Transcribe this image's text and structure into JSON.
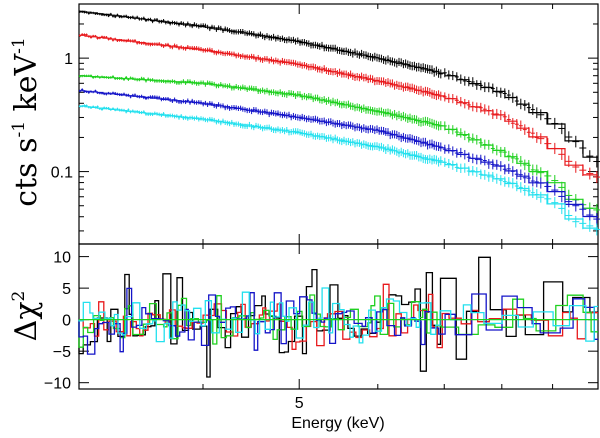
{
  "chart_data": [
    {
      "type": "line",
      "panel": "spectrum",
      "xscale": "log",
      "yscale": "log",
      "xlim": [
        3.0,
        10.0
      ],
      "ylim": [
        0.023,
        3.0
      ],
      "ylabel": "cts s⁻¹ keV⁻¹",
      "ylabel_main": "cts s",
      "ylabel_exp1": "-1",
      "ylabel_mid": " keV",
      "ylabel_exp2": "-1",
      "yticks": [
        0.1,
        1
      ],
      "ytick_labels": [
        "0.1",
        "1"
      ],
      "series": [
        {
          "name": "black",
          "color": "#000000",
          "x": [
            3.0,
            4.0,
            5.0,
            6.0,
            7.0,
            8.0,
            9.0,
            9.5,
            10.0
          ],
          "y": [
            2.6,
            1.9,
            1.4,
            1.0,
            0.73,
            0.5,
            0.28,
            0.18,
            0.12
          ]
        },
        {
          "name": "red",
          "color": "#e8191c",
          "x": [
            3.0,
            4.0,
            5.0,
            6.0,
            7.0,
            8.0,
            9.0,
            9.5,
            10.0
          ],
          "y": [
            1.6,
            1.18,
            0.88,
            0.63,
            0.46,
            0.31,
            0.17,
            0.11,
            0.088
          ]
        },
        {
          "name": "green",
          "color": "#1fd01f",
          "x": [
            3.0,
            4.0,
            5.0,
            6.0,
            7.0,
            8.0,
            9.0,
            9.5,
            10.0
          ],
          "y": [
            0.7,
            0.6,
            0.47,
            0.34,
            0.25,
            0.15,
            0.085,
            0.055,
            0.045
          ]
        },
        {
          "name": "blue",
          "color": "#1414c8",
          "x": [
            3.0,
            4.0,
            5.0,
            6.0,
            7.0,
            8.0,
            9.0,
            9.5,
            10.0
          ],
          "y": [
            0.52,
            0.4,
            0.3,
            0.23,
            0.16,
            0.11,
            0.07,
            0.05,
            0.037
          ]
        },
        {
          "name": "cyan",
          "color": "#22e0ee",
          "x": [
            3.0,
            4.0,
            5.0,
            6.0,
            7.0,
            8.0,
            9.0,
            9.5,
            10.0
          ],
          "y": [
            0.38,
            0.29,
            0.22,
            0.165,
            0.12,
            0.085,
            0.055,
            0.037,
            0.03
          ]
        }
      ]
    },
    {
      "type": "line",
      "panel": "residuals",
      "xscale": "log",
      "xlim": [
        3.0,
        10.0
      ],
      "ylim": [
        -11,
        12
      ],
      "ylabel": "Δχ²",
      "ylabel_main": "Δχ",
      "ylabel_exp": "2",
      "xlabel": "Energy (keV)",
      "yticks": [
        -10,
        -5,
        0,
        5,
        10
      ],
      "ytick_labels": [
        "−10",
        "−5",
        "0",
        "5",
        "10"
      ],
      "xticks": [
        5
      ],
      "xtick_labels": [
        "5"
      ],
      "series": [
        {
          "name": "black",
          "color": "#000000",
          "amplitude": 7.5,
          "seed": 11
        },
        {
          "name": "red",
          "color": "#e8191c",
          "amplitude": 4.5,
          "seed": 23
        },
        {
          "name": "green",
          "color": "#1fd01f",
          "amplitude": 4.0,
          "seed": 37
        },
        {
          "name": "blue",
          "color": "#1414c8",
          "amplitude": 4.5,
          "seed": 53
        },
        {
          "name": "cyan",
          "color": "#22e0ee",
          "amplitude": 4.0,
          "seed": 71
        }
      ]
    }
  ]
}
